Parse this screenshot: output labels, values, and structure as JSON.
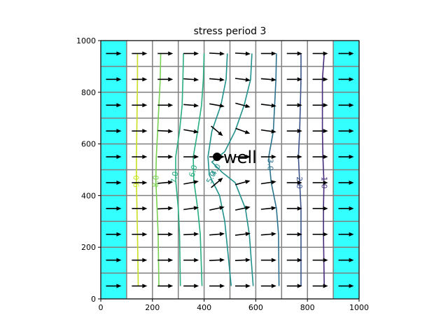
{
  "chart_data": {
    "type": "contour",
    "title": "stress period 3",
    "xlabel": "",
    "ylabel": "",
    "xlim": [
      0,
      1000
    ],
    "ylim": [
      0,
      1000
    ],
    "xticks": [
      0,
      200,
      400,
      600,
      800,
      1000
    ],
    "yticks": [
      0,
      200,
      400,
      600,
      800,
      1000
    ],
    "grid": {
      "ncol": 10,
      "nrow": 10,
      "cell_size": 100,
      "line_color": "#808080"
    },
    "constant_head_columns": {
      "columns": [
        0,
        9
      ],
      "color": "#33ffff"
    },
    "well": {
      "x": 450,
      "y": 550,
      "label": "well"
    },
    "contour_levels": [
      {
        "label": "1.0",
        "color": "#472d7b",
        "points": [
          [
            865,
            950
          ],
          [
            858,
            850
          ],
          [
            858,
            650
          ],
          [
            860,
            550
          ],
          [
            864,
            450
          ],
          [
            862,
            350
          ],
          [
            862,
            250
          ],
          [
            865,
            50
          ]
        ],
        "label_pos": [
          865,
          450
        ],
        "label_angle": 90
      },
      {
        "label": "2.0",
        "color": "#3b528b",
        "points": [
          [
            775,
            950
          ],
          [
            775,
            850
          ],
          [
            770,
            650
          ],
          [
            765,
            550
          ],
          [
            770,
            450
          ],
          [
            775,
            350
          ],
          [
            775,
            250
          ],
          [
            775,
            50
          ]
        ],
        "label_pos": [
          768,
          450
        ],
        "label_angle": 90
      },
      {
        "label": "3.0",
        "color": "#2c728e",
        "points": [
          [
            680,
            950
          ],
          [
            678,
            850
          ],
          [
            668,
            650
          ],
          [
            650,
            550
          ],
          [
            660,
            450
          ],
          [
            680,
            350
          ],
          [
            688,
            250
          ],
          [
            690,
            50
          ]
        ],
        "label_pos": [
          656,
          520
        ],
        "label_angle": 90
      },
      {
        "label": "4.0",
        "color": "#21918c",
        "points": [
          [
            585,
            950
          ],
          [
            580,
            850
          ],
          [
            555,
            750
          ],
          [
            520,
            650
          ],
          [
            480,
            570
          ],
          [
            430,
            530
          ],
          [
            470,
            490
          ],
          [
            520,
            450
          ],
          [
            560,
            350
          ],
          [
            575,
            250
          ],
          [
            590,
            50
          ]
        ],
        "label_pos": [
          445,
          500
        ],
        "label_angle": -60
      },
      {
        "label": "5.0",
        "color": "#21918c",
        "points": [
          [
            490,
            950
          ],
          [
            485,
            850
          ],
          [
            465,
            750
          ],
          [
            430,
            650
          ],
          [
            415,
            550
          ],
          [
            420,
            480
          ],
          [
            460,
            400
          ],
          [
            480,
            300
          ],
          [
            490,
            200
          ],
          [
            505,
            50
          ]
        ],
        "label_pos": [
          428,
          470
        ],
        "label_angle": -65
      },
      {
        "label": "6.0",
        "color": "#28ae80",
        "points": [
          [
            400,
            950
          ],
          [
            397,
            850
          ],
          [
            390,
            750
          ],
          [
            375,
            650
          ],
          [
            358,
            550
          ],
          [
            360,
            460
          ],
          [
            375,
            350
          ],
          [
            385,
            250
          ],
          [
            392,
            50
          ]
        ],
        "label_pos": [
          358,
          495
        ],
        "label_angle": -75
      },
      {
        "label": "7.0",
        "color": "#28ae80",
        "points": [
          [
            320,
            950
          ],
          [
            318,
            850
          ],
          [
            315,
            750
          ],
          [
            305,
            650
          ],
          [
            290,
            550
          ],
          [
            290,
            460
          ],
          [
            300,
            350
          ],
          [
            305,
            250
          ],
          [
            308,
            50
          ]
        ],
        "label_pos": [
          286,
          470
        ],
        "label_angle": -80
      },
      {
        "label": "8.0",
        "color": "#7ad151",
        "points": [
          [
            232,
            950
          ],
          [
            230,
            850
          ],
          [
            225,
            750
          ],
          [
            220,
            650
          ],
          [
            215,
            550
          ],
          [
            213,
            460
          ],
          [
            218,
            350
          ],
          [
            222,
            250
          ],
          [
            225,
            50
          ]
        ],
        "label_pos": [
          213,
          455
        ],
        "label_angle": -85
      },
      {
        "label": "9.0",
        "color": "#c8e020",
        "points": [
          [
            142,
            950
          ],
          [
            142,
            850
          ],
          [
            140,
            700
          ],
          [
            138,
            550
          ],
          [
            138,
            450
          ],
          [
            140,
            350
          ],
          [
            142,
            250
          ],
          [
            145,
            50
          ]
        ],
        "label_pos": [
          138,
          455
        ],
        "label_angle": -90
      }
    ],
    "vectors": {
      "color": "#000000",
      "columns_x": [
        150,
        250,
        350,
        450,
        550,
        650,
        750,
        850
      ],
      "rows_y": [
        950,
        850,
        750,
        650,
        550,
        450,
        350,
        250,
        150,
        50
      ],
      "edge_columns_x": [
        50,
        950
      ],
      "angles_deg": [
        [
          0,
          0,
          0,
          -3,
          -3,
          0,
          0,
          0
        ],
        [
          0,
          0,
          -4,
          -5,
          -7,
          -5,
          0,
          0
        ],
        [
          0,
          0,
          -5,
          -10,
          -15,
          -7,
          0,
          0
        ],
        [
          0,
          -3,
          -10,
          -40,
          -20,
          -8,
          0,
          0
        ],
        [
          0,
          0,
          0,
          0,
          0,
          0,
          0,
          0
        ],
        [
          0,
          5,
          10,
          40,
          15,
          8,
          0,
          0
        ],
        [
          0,
          3,
          8,
          12,
          12,
          6,
          0,
          0
        ],
        [
          0,
          0,
          3,
          5,
          7,
          5,
          0,
          0
        ],
        [
          0,
          0,
          0,
          3,
          3,
          0,
          0,
          0
        ],
        [
          0,
          0,
          0,
          0,
          0,
          0,
          0,
          0
        ]
      ]
    }
  }
}
